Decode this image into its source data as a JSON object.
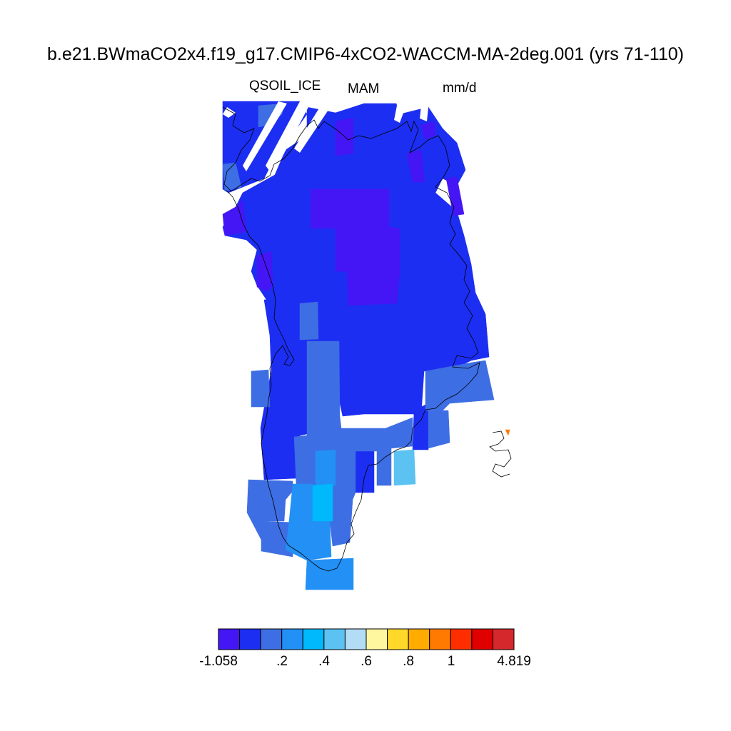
{
  "title": "b.e21.BWmaCO2x4.f19_g17.CMIP6-4xCO2-WACCM-MA-2deg.001 (yrs 71-110)",
  "variable": "QSOIL_ICE",
  "season": "MAM",
  "units": "mm/d",
  "colorbar": {
    "colors": [
      "#4416f5",
      "#1c2ef2",
      "#3e6ee3",
      "#2290f5",
      "#00b8fc",
      "#5bc2f2",
      "#b3dcf5",
      "#fff6a0",
      "#ffd82a",
      "#ffab00",
      "#ff7a00",
      "#ff2e00",
      "#e00000",
      "#d4282c"
    ],
    "labels": [
      "-1.058",
      ".2",
      ".4",
      ".6",
      ".8",
      "1",
      "4.819"
    ]
  },
  "map": {
    "palette": {
      "violet": "#4416f5",
      "blue": "#1c2ef2",
      "mid": "#3e6ee3",
      "sky": "#2290f5",
      "cyan": "#00b8fc",
      "lightcyan": "#5bc2f2",
      "orange": "#ff7a00"
    }
  }
}
